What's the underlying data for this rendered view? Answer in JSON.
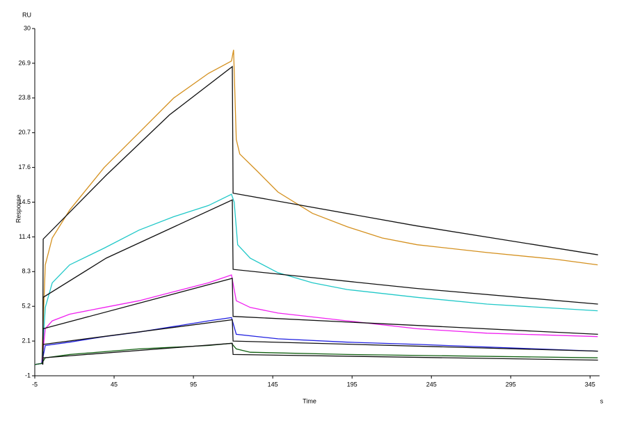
{
  "chart_data": {
    "type": "line",
    "y_label": "Response",
    "x_label": "Time",
    "y_unit": "RU",
    "x_unit": "s",
    "xlim": [
      -5,
      351
    ],
    "ylim": [
      -1,
      30
    ],
    "xticks": [
      -5,
      45,
      95,
      145,
      195,
      245,
      295,
      345
    ],
    "yticks": [
      -1,
      2.1,
      5.2,
      8.3,
      11.4,
      14.5,
      17.6,
      20.7,
      23.8,
      26.9,
      30
    ],
    "grid": false,
    "series": [
      {
        "color": "#d4901e",
        "x": [
          -5,
          -0.6,
          1.6,
          6,
          17,
          38.8,
          60.7,
          82.6,
          104.5,
          119,
          120.3,
          122,
          124.2,
          135,
          148.3,
          170,
          192,
          214,
          236,
          280,
          323.5,
          349.8
        ],
        "values": [
          0.0,
          0.1,
          8.9,
          11.3,
          13.8,
          17.6,
          20.7,
          23.8,
          26.0,
          27.1,
          28.1,
          20.1,
          18.8,
          17.3,
          15.4,
          13.5,
          12.3,
          11.3,
          10.7,
          10.0,
          9.4,
          8.9
        ]
      },
      {
        "color": "#20c8c8",
        "x": [
          -5,
          -0.6,
          1.6,
          6,
          17,
          38.8,
          60.7,
          82.6,
          104.5,
          119,
          120.7,
          122.9,
          130.8,
          148.3,
          170,
          192,
          236,
          280,
          349.8
        ],
        "values": [
          0.0,
          0.1,
          5.1,
          7.3,
          8.9,
          10.4,
          12.0,
          13.2,
          14.2,
          15.2,
          14.5,
          10.7,
          9.5,
          8.2,
          7.3,
          6.7,
          6.0,
          5.4,
          4.8
        ]
      },
      {
        "color": "#f020f0",
        "x": [
          -5,
          -0.6,
          1.6,
          6,
          17,
          38.8,
          60.7,
          82.6,
          104.5,
          119,
          122,
          130.8,
          148.3,
          192,
          236,
          280,
          349.8
        ],
        "values": [
          0.0,
          0.1,
          3.2,
          3.9,
          4.5,
          5.1,
          5.7,
          6.5,
          7.3,
          8.0,
          5.7,
          5.1,
          4.6,
          3.9,
          3.2,
          2.8,
          2.5
        ]
      },
      {
        "color": "#2020e0",
        "x": [
          -5,
          -0.6,
          1.6,
          17,
          38.8,
          60.7,
          82.6,
          104.5,
          119,
          122,
          148.3,
          192,
          236,
          349.8
        ],
        "values": [
          0.0,
          0.1,
          1.7,
          2.0,
          2.5,
          2.9,
          3.4,
          3.9,
          4.2,
          2.7,
          2.3,
          2.0,
          1.8,
          1.2
        ]
      },
      {
        "color": "#106010",
        "x": [
          -5,
          -0.6,
          1.6,
          17,
          60.7,
          104.5,
          119,
          122,
          130.8,
          192,
          349.8
        ],
        "values": [
          0.0,
          0.1,
          0.6,
          0.9,
          1.4,
          1.7,
          1.9,
          1.4,
          1.1,
          0.9,
          0.6
        ]
      },
      {
        "color": "#101010",
        "x": [
          0,
          0.3,
          40,
          80,
          119.5,
          120,
          235,
          350
        ],
        "values": [
          0.0,
          11.2,
          16.9,
          22.3,
          26.6,
          15.3,
          12.4,
          9.8
        ]
      },
      {
        "color": "#101010",
        "x": [
          0,
          0.3,
          40,
          119.5,
          120,
          235,
          350
        ],
        "values": [
          0.0,
          6.0,
          9.5,
          14.7,
          8.5,
          6.8,
          5.4
        ]
      },
      {
        "color": "#101010",
        "x": [
          0,
          0.3,
          119.5,
          120,
          350
        ],
        "values": [
          0.0,
          3.2,
          7.7,
          4.3,
          2.7
        ]
      },
      {
        "color": "#101010",
        "x": [
          0,
          0.3,
          119.5,
          120,
          350
        ],
        "values": [
          0.0,
          1.8,
          4.0,
          2.1,
          1.2
        ]
      },
      {
        "color": "#101010",
        "x": [
          0,
          0.3,
          119.5,
          120,
          350
        ],
        "values": [
          0.0,
          0.6,
          1.9,
          0.9,
          0.4
        ]
      }
    ]
  }
}
